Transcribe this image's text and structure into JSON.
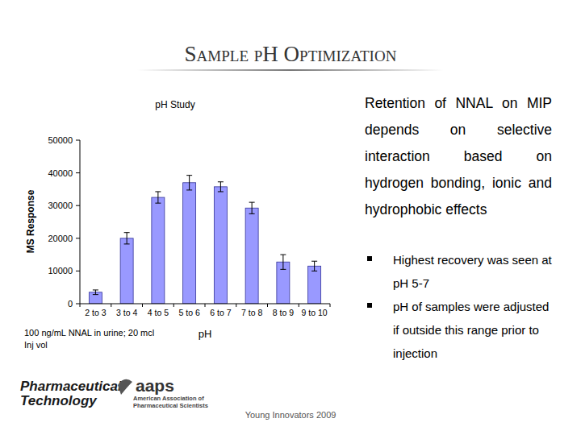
{
  "slide": {
    "title": "Sample pH Optimization",
    "text": "Retention of NNAL on MIP depends on selective interaction based on hydrogen bonding, ionic and hydrophobic effects",
    "bullets": [
      "Highest recovery was seen at pH 5-7",
      "pH of samples were adjusted if outside this range prior to injection"
    ],
    "footer": "Young Innovators 2009",
    "logos": {
      "pharmtech": [
        "Pharmaceutical",
        "Technology"
      ],
      "aaps": {
        "name": "aaps",
        "lines": [
          "American Association of",
          "Pharmaceutical Scientists"
        ]
      }
    }
  },
  "chart_data": {
    "type": "bar",
    "title": "pH Study",
    "x_label": "pH",
    "y_label": "MS Response",
    "note": "100 ng/mL NNAL in urine; 20 mcl Inj vol",
    "categories": [
      "2 to 3",
      "3 to 4",
      "4 to 5",
      "5 to 6",
      "6 to 7",
      "7 to 8",
      "8 to 9",
      "9 to 10"
    ],
    "values": [
      3500,
      20000,
      32500,
      37000,
      35750,
      29250,
      12750,
      11500
    ],
    "errors": [
      700,
      1750,
      1750,
      2250,
      1500,
      1750,
      2250,
      1500
    ],
    "color": "#9999ff",
    "ylim": [
      0,
      50000
    ],
    "yticks": [
      0,
      10000,
      20000,
      30000,
      40000,
      50000
    ],
    "grid": false
  }
}
